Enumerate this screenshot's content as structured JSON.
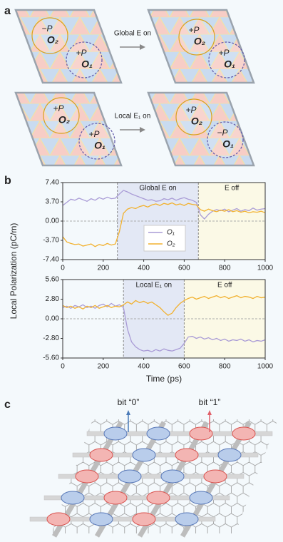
{
  "panel_labels": [
    "a",
    "b",
    "c"
  ],
  "panel_a": {
    "rows": [
      {
        "arrow": "Global E on",
        "left": [
          {
            "sign": "−P",
            "label": "O₂"
          },
          {
            "sign": "+P",
            "label": "O₁"
          }
        ],
        "right": [
          {
            "sign": "+P",
            "label": "O₂"
          },
          {
            "sign": "+P",
            "label": "O₁"
          }
        ]
      },
      {
        "arrow": "Local E₁ on",
        "left": [
          {
            "sign": "+P",
            "label": "O₂"
          },
          {
            "sign": "+P",
            "label": "O₁"
          }
        ],
        "right": [
          {
            "sign": "+P",
            "label": "O₂"
          },
          {
            "sign": "−P",
            "label": "O₁"
          }
        ]
      }
    ]
  },
  "panel_b": {
    "ylabel": "Local Polarization (pC/m)",
    "xlabel": "Time (ps)"
  },
  "panel_c": {
    "labels": [
      "bit “0”",
      "bit “1”"
    ]
  },
  "chart_data": [
    {
      "type": "line",
      "legend": "lower center",
      "xlim": [
        0,
        1000
      ],
      "xticks": [
        0,
        200,
        400,
        600,
        800,
        1000
      ],
      "ylim": [
        -7.4,
        7.4
      ],
      "yticks": [
        {
          "value": -7.4,
          "label": "-7.40"
        },
        {
          "value": -3.7,
          "label": "-3.70"
        },
        {
          "value": 0,
          "label": "0.00"
        },
        {
          "value": 3.7,
          "label": "3.70"
        },
        {
          "value": 7.4,
          "label": "7.40"
        }
      ],
      "regions": [
        {
          "x0": 270,
          "x1": 670,
          "fill": "#e3e8f5"
        },
        {
          "x0": 670,
          "x1": 1000,
          "fill": "#fbf9e6"
        }
      ],
      "annotations": [
        "Global E on",
        "E off"
      ],
      "x": [
        0,
        20,
        40,
        60,
        80,
        100,
        120,
        140,
        160,
        180,
        200,
        220,
        240,
        260,
        280,
        300,
        320,
        340,
        360,
        380,
        400,
        420,
        440,
        460,
        480,
        500,
        520,
        540,
        560,
        580,
        600,
        620,
        640,
        660,
        680,
        700,
        720,
        740,
        760,
        780,
        800,
        820,
        840,
        860,
        880,
        900,
        920,
        940,
        960,
        980,
        1000
      ],
      "series": [
        {
          "name": "O₁",
          "color": "#a99bd6",
          "values": [
            3.0,
            3.6,
            4.2,
            4.0,
            4.4,
            4.1,
            3.8,
            4.3,
            4.0,
            4.5,
            4.2,
            4.6,
            4.3,
            4.4,
            5.2,
            5.9,
            5.6,
            5.2,
            4.9,
            4.6,
            4.3,
            4.0,
            4.1,
            3.8,
            3.9,
            4.3,
            4.1,
            4.4,
            4.0,
            4.3,
            4.5,
            4.2,
            4.0,
            3.6,
            1.2,
            0.4,
            1.3,
            1.9,
            2.2,
            2.0,
            2.3,
            1.8,
            2.1,
            2.4,
            1.9,
            2.2,
            2.0,
            2.5,
            2.1,
            2.3,
            2.4
          ]
        },
        {
          "name": "O₂",
          "color": "#f2b12e",
          "values": [
            -3.0,
            -4.0,
            -4.3,
            -4.5,
            -4.4,
            -4.8,
            -4.6,
            -4.4,
            -4.9,
            -4.5,
            -4.7,
            -4.3,
            -4.6,
            -4.4,
            -2.0,
            1.5,
            2.3,
            2.6,
            2.4,
            2.8,
            3.0,
            2.7,
            3.1,
            3.3,
            3.0,
            3.4,
            3.2,
            3.5,
            3.1,
            3.3,
            3.0,
            3.4,
            3.2,
            3.1,
            2.2,
            1.9,
            2.3,
            2.0,
            1.8,
            2.1,
            1.9,
            2.2,
            1.8,
            2.0,
            1.7,
            1.9,
            1.6,
            1.8,
            1.7,
            1.9,
            1.6
          ]
        }
      ]
    },
    {
      "type": "line",
      "xlim": [
        0,
        1000
      ],
      "xticks": [
        0,
        200,
        400,
        600,
        800,
        1000
      ],
      "ylim": [
        -5.6,
        5.6
      ],
      "yticks": [
        {
          "value": -5.6,
          "label": "-5.60"
        },
        {
          "value": -2.8,
          "label": "-2.80"
        },
        {
          "value": 0,
          "label": "0.00"
        },
        {
          "value": 2.8,
          "label": "2.80"
        },
        {
          "value": 5.6,
          "label": "5.60"
        }
      ],
      "regions": [
        {
          "x0": 300,
          "x1": 600,
          "fill": "#e3e8f5"
        },
        {
          "x0": 600,
          "x1": 1000,
          "fill": "#fbf9e6"
        }
      ],
      "annotations": [
        "Local E₁ on",
        "E off"
      ],
      "x": [
        0,
        20,
        40,
        60,
        80,
        100,
        120,
        140,
        160,
        180,
        200,
        220,
        240,
        260,
        280,
        300,
        320,
        340,
        360,
        380,
        400,
        420,
        440,
        460,
        480,
        500,
        520,
        540,
        560,
        580,
        600,
        620,
        640,
        660,
        680,
        700,
        720,
        740,
        760,
        780,
        800,
        820,
        840,
        860,
        880,
        900,
        920,
        940,
        960,
        980,
        1000
      ],
      "series": [
        {
          "color": "#a99bd6",
          "values": [
            1.6,
            1.8,
            1.5,
            1.9,
            1.7,
            2.0,
            1.6,
            1.8,
            1.5,
            1.9,
            2.1,
            1.7,
            2.2,
            1.8,
            2.0,
            1.6,
            -1.5,
            -3.3,
            -4.0,
            -4.4,
            -4.6,
            -4.5,
            -4.7,
            -4.4,
            -4.6,
            -4.3,
            -4.5,
            -4.6,
            -4.4,
            -4.2,
            -3.5,
            -2.6,
            -2.5,
            -2.8,
            -2.6,
            -2.9,
            -2.7,
            -3.0,
            -2.8,
            -3.1,
            -2.9,
            -3.2,
            -3.0,
            -3.1,
            -2.9,
            -3.2,
            -3.0,
            -3.3,
            -3.1,
            -3.2,
            -3.0
          ]
        },
        {
          "color": "#f2b12e",
          "values": [
            1.9,
            1.6,
            1.8,
            1.5,
            1.7,
            1.4,
            1.8,
            1.6,
            1.9,
            1.5,
            1.7,
            1.9,
            1.6,
            1.8,
            1.7,
            2.0,
            2.4,
            2.1,
            2.6,
            2.3,
            2.5,
            2.2,
            2.4,
            2.0,
            1.6,
            1.0,
            0.5,
            0.8,
            1.6,
            2.2,
            2.6,
            2.9,
            3.1,
            2.8,
            3.0,
            3.2,
            2.9,
            3.1,
            3.3,
            3.0,
            3.2,
            2.9,
            3.1,
            3.3,
            3.0,
            3.2,
            3.1,
            2.9,
            3.2,
            3.0,
            3.1
          ]
        }
      ]
    }
  ]
}
